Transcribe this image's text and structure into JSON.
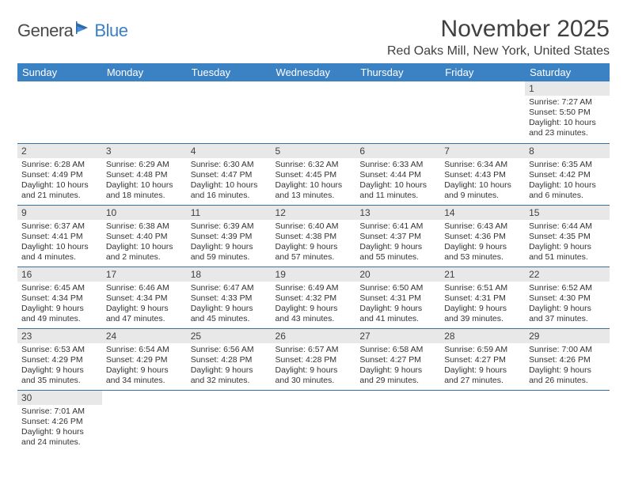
{
  "logo": {
    "part1": "Genera",
    "part2": "Blue"
  },
  "title": "November 2025",
  "location": "Red Oaks Mill, New York, United States",
  "colors": {
    "header_bg": "#3b82c4",
    "header_text": "#ffffff",
    "daynum_bg": "#e8e8e8",
    "border": "#3b6fa0",
    "logo_gray": "#4a4a4a",
    "logo_blue": "#3b7fc4"
  },
  "weekdays": [
    "Sunday",
    "Monday",
    "Tuesday",
    "Wednesday",
    "Thursday",
    "Friday",
    "Saturday"
  ],
  "weeks": [
    [
      null,
      null,
      null,
      null,
      null,
      null,
      {
        "n": "1",
        "sr": "7:27 AM",
        "ss": "5:50 PM",
        "dl": "10 hours and 23 minutes."
      }
    ],
    [
      {
        "n": "2",
        "sr": "6:28 AM",
        "ss": "4:49 PM",
        "dl": "10 hours and 21 minutes."
      },
      {
        "n": "3",
        "sr": "6:29 AM",
        "ss": "4:48 PM",
        "dl": "10 hours and 18 minutes."
      },
      {
        "n": "4",
        "sr": "6:30 AM",
        "ss": "4:47 PM",
        "dl": "10 hours and 16 minutes."
      },
      {
        "n": "5",
        "sr": "6:32 AM",
        "ss": "4:45 PM",
        "dl": "10 hours and 13 minutes."
      },
      {
        "n": "6",
        "sr": "6:33 AM",
        "ss": "4:44 PM",
        "dl": "10 hours and 11 minutes."
      },
      {
        "n": "7",
        "sr": "6:34 AM",
        "ss": "4:43 PM",
        "dl": "10 hours and 9 minutes."
      },
      {
        "n": "8",
        "sr": "6:35 AM",
        "ss": "4:42 PM",
        "dl": "10 hours and 6 minutes."
      }
    ],
    [
      {
        "n": "9",
        "sr": "6:37 AM",
        "ss": "4:41 PM",
        "dl": "10 hours and 4 minutes."
      },
      {
        "n": "10",
        "sr": "6:38 AM",
        "ss": "4:40 PM",
        "dl": "10 hours and 2 minutes."
      },
      {
        "n": "11",
        "sr": "6:39 AM",
        "ss": "4:39 PM",
        "dl": "9 hours and 59 minutes."
      },
      {
        "n": "12",
        "sr": "6:40 AM",
        "ss": "4:38 PM",
        "dl": "9 hours and 57 minutes."
      },
      {
        "n": "13",
        "sr": "6:41 AM",
        "ss": "4:37 PM",
        "dl": "9 hours and 55 minutes."
      },
      {
        "n": "14",
        "sr": "6:43 AM",
        "ss": "4:36 PM",
        "dl": "9 hours and 53 minutes."
      },
      {
        "n": "15",
        "sr": "6:44 AM",
        "ss": "4:35 PM",
        "dl": "9 hours and 51 minutes."
      }
    ],
    [
      {
        "n": "16",
        "sr": "6:45 AM",
        "ss": "4:34 PM",
        "dl": "9 hours and 49 minutes."
      },
      {
        "n": "17",
        "sr": "6:46 AM",
        "ss": "4:34 PM",
        "dl": "9 hours and 47 minutes."
      },
      {
        "n": "18",
        "sr": "6:47 AM",
        "ss": "4:33 PM",
        "dl": "9 hours and 45 minutes."
      },
      {
        "n": "19",
        "sr": "6:49 AM",
        "ss": "4:32 PM",
        "dl": "9 hours and 43 minutes."
      },
      {
        "n": "20",
        "sr": "6:50 AM",
        "ss": "4:31 PM",
        "dl": "9 hours and 41 minutes."
      },
      {
        "n": "21",
        "sr": "6:51 AM",
        "ss": "4:31 PM",
        "dl": "9 hours and 39 minutes."
      },
      {
        "n": "22",
        "sr": "6:52 AM",
        "ss": "4:30 PM",
        "dl": "9 hours and 37 minutes."
      }
    ],
    [
      {
        "n": "23",
        "sr": "6:53 AM",
        "ss": "4:29 PM",
        "dl": "9 hours and 35 minutes."
      },
      {
        "n": "24",
        "sr": "6:54 AM",
        "ss": "4:29 PM",
        "dl": "9 hours and 34 minutes."
      },
      {
        "n": "25",
        "sr": "6:56 AM",
        "ss": "4:28 PM",
        "dl": "9 hours and 32 minutes."
      },
      {
        "n": "26",
        "sr": "6:57 AM",
        "ss": "4:28 PM",
        "dl": "9 hours and 30 minutes."
      },
      {
        "n": "27",
        "sr": "6:58 AM",
        "ss": "4:27 PM",
        "dl": "9 hours and 29 minutes."
      },
      {
        "n": "28",
        "sr": "6:59 AM",
        "ss": "4:27 PM",
        "dl": "9 hours and 27 minutes."
      },
      {
        "n": "29",
        "sr": "7:00 AM",
        "ss": "4:26 PM",
        "dl": "9 hours and 26 minutes."
      }
    ],
    [
      {
        "n": "30",
        "sr": "7:01 AM",
        "ss": "4:26 PM",
        "dl": "9 hours and 24 minutes."
      },
      null,
      null,
      null,
      null,
      null,
      null
    ]
  ],
  "labels": {
    "sunrise": "Sunrise: ",
    "sunset": "Sunset: ",
    "daylight": "Daylight: "
  }
}
